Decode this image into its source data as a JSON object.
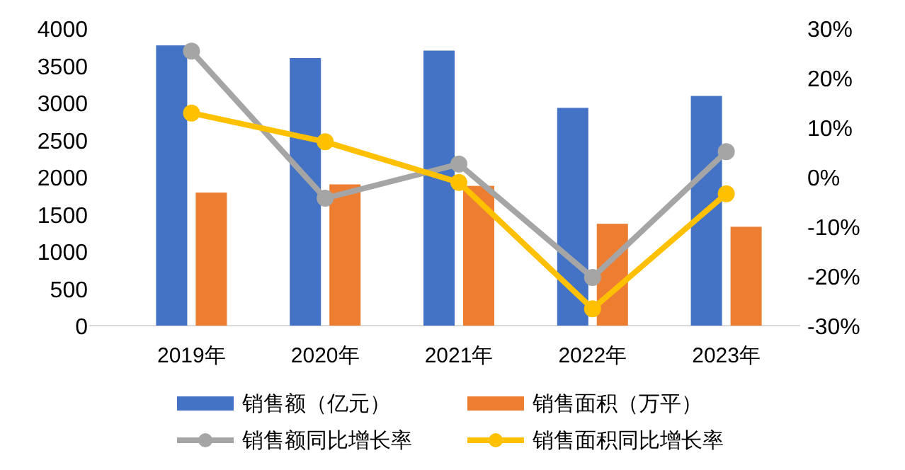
{
  "chart_data": {
    "type": "bar",
    "categories": [
      "2019年",
      "2020年",
      "2021年",
      "2022年",
      "2023年"
    ],
    "series": [
      {
        "name": "销售额（亿元）",
        "color": "#4472c4",
        "values": [
          3770,
          3600,
          3700,
          2930,
          3090
        ]
      },
      {
        "name": "销售面积（万平）",
        "color": "#ed7d31",
        "values": [
          1790,
          1900,
          1880,
          1370,
          1330
        ]
      },
      {
        "name": "销售额同比增长率",
        "type": "line",
        "axis": "y2",
        "color": "#a5a5a5",
        "marker": "circle",
        "values": [
          25.4,
          -4.3,
          2.6,
          -20.3,
          5.1
        ]
      },
      {
        "name": "销售面积同比增长率",
        "type": "line",
        "axis": "y2",
        "color": "#ffc000",
        "marker": "circle",
        "values": [
          12.9,
          7.1,
          -1.1,
          -26.6,
          -3.4
        ]
      }
    ],
    "ylim": [
      0,
      4000
    ],
    "yticks": [
      0,
      500,
      1000,
      1500,
      2000,
      2500,
      3000,
      3500,
      4000
    ],
    "y2lim": [
      -30,
      30
    ],
    "y2ticks": [
      {
        "value": -30,
        "label": "-30%"
      },
      {
        "value": -20,
        "label": "-20%"
      },
      {
        "value": -10,
        "label": "-10%"
      },
      {
        "value": 0,
        "label": "0%"
      },
      {
        "value": 10,
        "label": "10%"
      },
      {
        "value": 20,
        "label": "20%"
      },
      {
        "value": 30,
        "label": "30%"
      }
    ],
    "legend": "bottom",
    "grid": false
  }
}
